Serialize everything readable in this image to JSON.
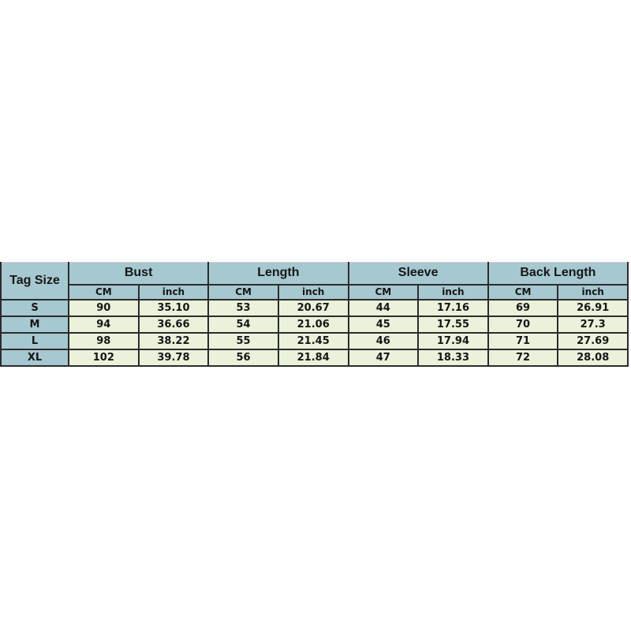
{
  "table": {
    "corner_label": "Tag Size",
    "groups": [
      {
        "label": "Bust"
      },
      {
        "label": "Length"
      },
      {
        "label": "Sleeve"
      },
      {
        "label": "Back Length"
      }
    ],
    "sub_headers": [
      "CM",
      "inch"
    ],
    "rows": [
      {
        "size": "S",
        "values": [
          "90",
          "35.10",
          "53",
          "20.67",
          "44",
          "17.16",
          "69",
          "26.91"
        ]
      },
      {
        "size": "M",
        "values": [
          "94",
          "36.66",
          "54",
          "21.06",
          "45",
          "17.55",
          "70",
          "27.3"
        ]
      },
      {
        "size": "L",
        "values": [
          "98",
          "38.22",
          "55",
          "21.45",
          "46",
          "17.94",
          "71",
          "27.69"
        ]
      },
      {
        "size": "XL",
        "values": [
          "102",
          "39.78",
          "56",
          "21.84",
          "47",
          "18.33",
          "72",
          "28.08"
        ]
      }
    ],
    "colors": {
      "header_bg": "#a6c8d0",
      "cell_bg": "#eaf2db",
      "border": "#2c2c2c",
      "text": "#161616",
      "page_bg": "#ffffff"
    }
  },
  "chart_data": {
    "type": "table",
    "title": "Garment size chart",
    "columns": [
      "Tag Size",
      "Bust CM",
      "Bust inch",
      "Length CM",
      "Length inch",
      "Sleeve CM",
      "Sleeve inch",
      "Back Length CM",
      "Back Length inch"
    ],
    "rows": [
      [
        "S",
        90,
        35.1,
        53,
        20.67,
        44,
        17.16,
        69,
        26.91
      ],
      [
        "M",
        94,
        36.66,
        54,
        21.06,
        45,
        17.55,
        70,
        27.3
      ],
      [
        "L",
        98,
        38.22,
        55,
        21.45,
        46,
        17.94,
        71,
        27.69
      ],
      [
        "XL",
        102,
        39.78,
        56,
        21.84,
        47,
        18.33,
        72,
        28.08
      ]
    ]
  }
}
